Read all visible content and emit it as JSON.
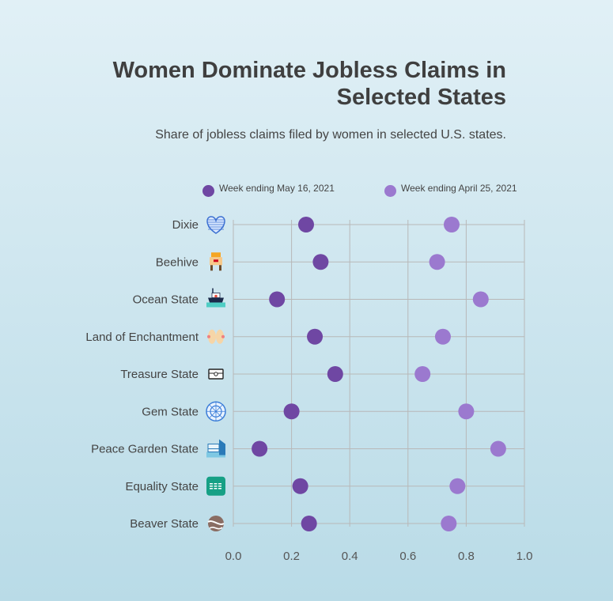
{
  "title": "Women Dominate Jobless Claims in Selected States",
  "subtitle": "Share of jobless claims filed by women in selected U.S. states.",
  "colors": {
    "series1": "#6f47a3",
    "series2": "#9b79cf",
    "grid": "#b8b8b8"
  },
  "chart_data": {
    "type": "scatter",
    "categories": [
      "Dixie",
      "Beehive",
      "Ocean State",
      "Land of Enchantment",
      "Treasure State",
      "Gem State",
      "Peace Garden State",
      "Equality State",
      "Beaver State"
    ],
    "category_icons": [
      "heart-flag-icon",
      "beehive-icon",
      "ship-icon",
      "hands-icon",
      "treasure-chest-icon",
      "gem-icon",
      "peace-garden-icon",
      "equality-icon",
      "beaver-icon"
    ],
    "series": [
      {
        "name": "Week ending May 16, 2021",
        "values": [
          0.25,
          0.3,
          0.15,
          0.28,
          0.35,
          0.2,
          0.09,
          0.23,
          0.26
        ]
      },
      {
        "name": "Week ending April 25, 2021",
        "values": [
          0.75,
          0.7,
          0.85,
          0.72,
          0.65,
          0.8,
          0.91,
          0.77,
          0.74
        ]
      }
    ],
    "xlim": [
      0,
      1
    ],
    "xticks": [
      "0.0",
      "0.2",
      "0.4",
      "0.6",
      "0.8",
      "1.0"
    ],
    "grid": true,
    "legend_position": "top"
  }
}
